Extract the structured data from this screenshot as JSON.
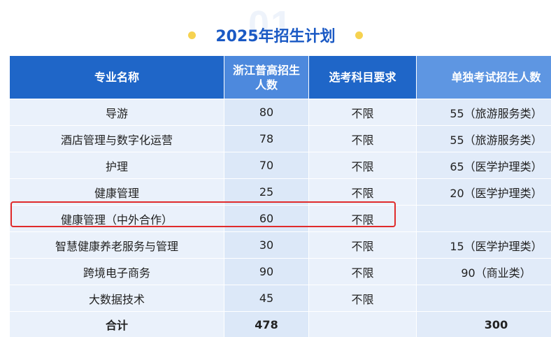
{
  "header": {
    "watermark": "01",
    "title": "2025年招生计划",
    "accent_color": "#1a59c4",
    "dot_color": "#f6d250"
  },
  "table": {
    "columns": [
      "专业名称",
      "浙江普高招生人数",
      "选考科目要求",
      "单独考试招生人数"
    ],
    "rows": [
      [
        "导游",
        "80",
        "不限",
        "55（旅游服务类）"
      ],
      [
        "酒店管理与数字化运营",
        "78",
        "不限",
        "55（旅游服务类）"
      ],
      [
        "护理",
        "70",
        "不限",
        "65（医学护理类）"
      ],
      [
        "健康管理",
        "25",
        "不限",
        "20（医学护理类）"
      ],
      [
        "健康管理（中外合作）",
        "60",
        "不限",
        ""
      ],
      [
        "智慧健康养老服务与管理",
        "30",
        "不限",
        "15（医学护理类）"
      ],
      [
        "跨境电子商务",
        "90",
        "不限",
        "90（商业类）"
      ],
      [
        "大数据技术",
        "45",
        "不限",
        ""
      ]
    ],
    "total": [
      "合计",
      "478",
      "",
      "300"
    ],
    "highlight_color": "#e02b2b"
  }
}
